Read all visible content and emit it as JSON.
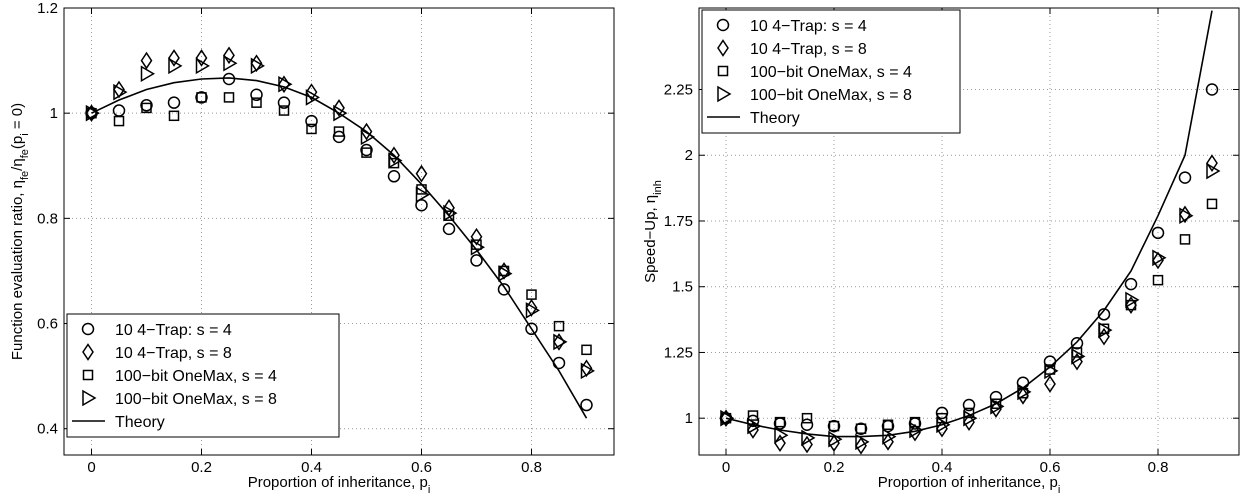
{
  "chart_data": [
    {
      "type": "scatter",
      "xlabel": [
        "Proportion of inheritance, p",
        "i"
      ],
      "ylabel": [
        "Function evaluation ratio, η",
        "fe",
        "/η",
        "fe",
        "(p",
        "i",
        " = 0)"
      ],
      "xlim": [
        -0.05,
        0.95
      ],
      "xticks": [
        0,
        0.2,
        0.4,
        0.6,
        0.8
      ],
      "ylim": [
        0.35,
        1.2
      ],
      "yticks": [
        0.4,
        0.6,
        0.8,
        1,
        1.2
      ],
      "grid": true,
      "legend": "lower left",
      "x": [
        0,
        0.05,
        0.1,
        0.15,
        0.2,
        0.25,
        0.3,
        0.35,
        0.4,
        0.45,
        0.5,
        0.55,
        0.6,
        0.65,
        0.7,
        0.75,
        0.8,
        0.85,
        0.9
      ],
      "series": [
        {
          "name": "10 4−Trap: s = 4",
          "marker": "circle",
          "color": "#000000",
          "values": [
            1.0,
            1.005,
            1.015,
            1.02,
            1.03,
            1.065,
            1.035,
            1.02,
            0.985,
            0.955,
            0.93,
            0.88,
            0.825,
            0.78,
            0.72,
            0.665,
            0.59,
            0.525,
            0.445
          ]
        },
        {
          "name": "10 4−Trap, s = 8",
          "marker": "diamond",
          "color": "#000000",
          "values": [
            1.0,
            1.045,
            1.1,
            1.105,
            1.105,
            1.11,
            1.095,
            1.055,
            1.04,
            1.01,
            0.965,
            0.92,
            0.885,
            0.82,
            0.765,
            0.7,
            0.63,
            0.565,
            0.515
          ]
        },
        {
          "name": "100−bit OneMax, s = 4",
          "marker": "square",
          "color": "#000000",
          "values": [
            1.0,
            0.985,
            1.01,
            0.995,
            1.03,
            1.03,
            1.02,
            1.005,
            0.97,
            0.965,
            0.925,
            0.905,
            0.855,
            0.805,
            0.75,
            0.7,
            0.655,
            0.595,
            0.55
          ]
        },
        {
          "name": "100−bit OneMax, s = 8",
          "marker": "triangle",
          "color": "#000000",
          "values": [
            1.0,
            1.04,
            1.075,
            1.09,
            1.09,
            1.095,
            1.09,
            1.055,
            1.03,
            1.0,
            0.955,
            0.91,
            0.845,
            0.81,
            0.745,
            0.695,
            0.625,
            0.565,
            0.51
          ]
        },
        {
          "name": "Theory",
          "marker": "line",
          "color": "#000000",
          "values": [
            1.0,
            1.025,
            1.045,
            1.058,
            1.065,
            1.067,
            1.062,
            1.05,
            1.03,
            1.0,
            0.965,
            0.92,
            0.865,
            0.805,
            0.74,
            0.67,
            0.59,
            0.51,
            0.42
          ]
        }
      ]
    },
    {
      "type": "scatter",
      "xlabel": [
        "Proportion of inheritance, p",
        "i"
      ],
      "ylabel": [
        "Speed−Up, η",
        "inh"
      ],
      "xlim": [
        -0.05,
        0.95
      ],
      "xticks": [
        0,
        0.2,
        0.4,
        0.6,
        0.8
      ],
      "ylim": [
        0.86,
        2.56
      ],
      "yticks": [
        1,
        1.25,
        1.5,
        1.75,
        2,
        2.25
      ],
      "grid": true,
      "legend": "upper left",
      "x": [
        0,
        0.05,
        0.1,
        0.15,
        0.2,
        0.25,
        0.3,
        0.35,
        0.4,
        0.45,
        0.5,
        0.55,
        0.6,
        0.65,
        0.7,
        0.75,
        0.8,
        0.85,
        0.9
      ],
      "series": [
        {
          "name": "10 4−Trap: s = 4",
          "marker": "circle",
          "color": "#000000",
          "values": [
            1.0,
            0.99,
            0.98,
            0.975,
            0.97,
            0.96,
            0.97,
            0.98,
            1.02,
            1.05,
            1.08,
            1.135,
            1.215,
            1.285,
            1.395,
            1.51,
            1.705,
            1.915,
            2.25
          ]
        },
        {
          "name": "10 4−Trap, s = 8",
          "marker": "diamond",
          "color": "#000000",
          "values": [
            1.0,
            0.955,
            0.905,
            0.9,
            0.905,
            0.895,
            0.91,
            0.945,
            0.96,
            0.985,
            1.035,
            1.085,
            1.13,
            1.215,
            1.31,
            1.43,
            1.6,
            1.775,
            1.97
          ]
        },
        {
          "name": "100−bit OneMax, s = 4",
          "marker": "square",
          "color": "#000000",
          "values": [
            1.0,
            1.01,
            0.985,
            1.0,
            0.97,
            0.96,
            0.975,
            0.985,
            1.0,
            1.02,
            1.055,
            1.095,
            1.185,
            1.25,
            1.34,
            1.43,
            1.525,
            1.68,
            1.815
          ]
        },
        {
          "name": "100−bit OneMax, s = 8",
          "marker": "triangle",
          "color": "#000000",
          "values": [
            1.0,
            0.97,
            0.935,
            0.925,
            0.92,
            0.91,
            0.93,
            0.955,
            0.975,
            1.0,
            1.045,
            1.1,
            1.18,
            1.235,
            1.335,
            1.45,
            1.61,
            1.77,
            1.94
          ]
        },
        {
          "name": "Theory",
          "marker": "line",
          "color": "#000000",
          "values": [
            1.0,
            0.975,
            0.955,
            0.94,
            0.93,
            0.93,
            0.935,
            0.95,
            0.975,
            1.01,
            1.055,
            1.115,
            1.195,
            1.29,
            1.41,
            1.56,
            1.77,
            2.0,
            2.55
          ]
        }
      ]
    }
  ]
}
